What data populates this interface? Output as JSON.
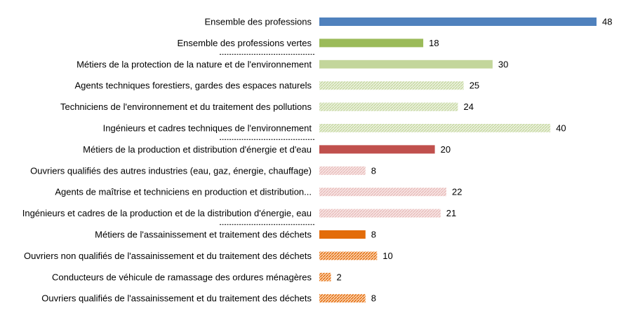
{
  "chart_data": {
    "type": "bar",
    "orientation": "horizontal",
    "title": "",
    "xlabel": "",
    "ylabel": "",
    "xlim": [
      0,
      48
    ],
    "grid": false,
    "legend": "none",
    "categories": [
      "Ensemble des professions",
      "Ensemble des professions vertes",
      "Métiers de la protection de la nature et de l'environnement",
      "Agents techniques forestiers, gardes des espaces naturels",
      "Techniciens de l'environnement et du traitement des pollutions",
      "Ingénieurs et cadres techniques de l'environnement",
      "Métiers de la production et distribution d'énergie et d'eau",
      "Ouvriers qualifiés des autres industries (eau, gaz, énergie, chauffage)",
      "Agents de maîtrise et techniciens en production et distribution...",
      "Ingénieurs et cadres de la production et de la distribution d'énergie, eau",
      "Métiers de l'assainissement et traitement des déchets",
      "Ouvriers non qualifiés de l'assainissement et du traitement des déchets",
      "Conducteurs de véhicule de ramassage des ordures ménagères",
      "Ouvriers qualifiés de l'assainissement et du traitement des déchets"
    ],
    "values": [
      48,
      18,
      30,
      25,
      24,
      40,
      20,
      8,
      22,
      21,
      8,
      10,
      2,
      8
    ],
    "bar_styles": [
      "solid",
      "solid",
      "solid",
      "light",
      "light",
      "light",
      "solid",
      "light",
      "light",
      "light",
      "solid",
      "hatch",
      "hatch",
      "hatch"
    ],
    "colors": [
      "#4f81bd",
      "#9bbb59",
      "#c3d69b",
      "#c3d69b",
      "#c3d69b",
      "#c3d69b",
      "#c0504d",
      "#e6b9b8",
      "#e6b9b8",
      "#e6b9b8",
      "#e36c09",
      "#e36c09",
      "#e36c09",
      "#e36c09"
    ],
    "group_separators_before": [
      2,
      6,
      10
    ]
  }
}
